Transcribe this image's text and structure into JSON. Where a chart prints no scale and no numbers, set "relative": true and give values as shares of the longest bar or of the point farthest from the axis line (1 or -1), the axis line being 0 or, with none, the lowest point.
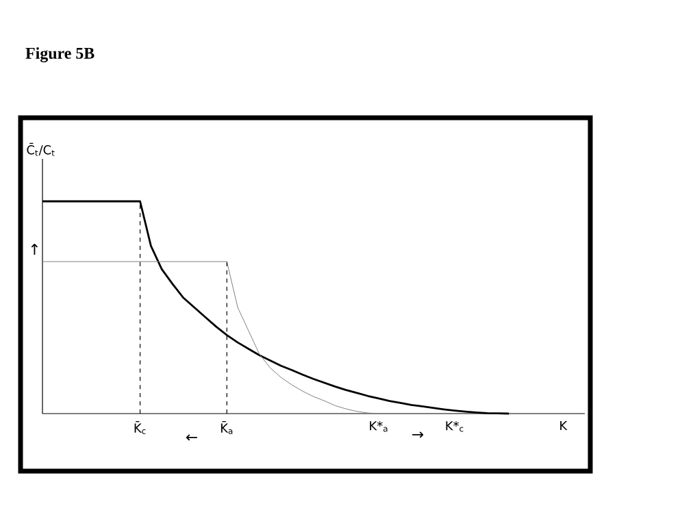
{
  "chart_data": {
    "type": "line",
    "title": "Figure 5B",
    "ylabel": "C̄$_{t}$/C$_{t}$",
    "relative": true,
    "categories": [
      null,
      null,
      null,
      null,
      null,
      null,
      null,
      null,
      null,
      "K̄$_{c}$",
      null,
      null,
      null,
      null,
      null,
      null,
      null,
      "K̄$_{a}$",
      null,
      null,
      null,
      null,
      null,
      null,
      null,
      null,
      null,
      null,
      null,
      null,
      null,
      "K*$_{a}$",
      null,
      null,
      null,
      null,
      null,
      null,
      "K*$_{c}$",
      null,
      null,
      null,
      null,
      null,
      null,
      null,
      null,
      null,
      "K",
      null,
      null
    ],
    "series": [
      {
        "color": "#000000",
        "values": [
          1,
          1,
          1,
          1,
          1,
          1,
          1,
          1,
          1,
          1,
          0.79,
          0.68,
          0.61,
          0.545,
          0.5,
          0.455,
          0.41,
          0.37,
          0.335,
          0.305,
          0.275,
          0.25,
          0.225,
          0.205,
          0.183,
          0.163,
          0.145,
          0.127,
          0.111,
          0.097,
          0.083,
          0.071,
          0.059,
          0.05,
          0.041,
          0.034,
          0.027,
          0.02,
          0.014,
          0.009,
          0.005,
          0.002,
          0.001,
          0,
          null,
          null,
          null,
          null,
          null,
          null,
          null
        ]
      },
      {
        "color": "#808080",
        "values": [
          0.716,
          0.716,
          0.716,
          0.716,
          0.716,
          0.716,
          0.716,
          0.716,
          0.716,
          0.716,
          0.716,
          0.716,
          0.716,
          0.716,
          0.716,
          0.716,
          0.716,
          0.716,
          0.5,
          0.39,
          0.28,
          0.215,
          0.17,
          0.135,
          0.105,
          0.08,
          0.06,
          0.037,
          0.022,
          0.01,
          0.003,
          0,
          0,
          null,
          null,
          null,
          null,
          null,
          null,
          null,
          null,
          null,
          null,
          null,
          null,
          null,
          null,
          null,
          null,
          null,
          null
        ]
      }
    ],
    "ref_lines": [
      {
        "axis": "x",
        "value": "K̄$_{c}$",
        "line_style": "dashed"
      },
      {
        "axis": "x",
        "value": "K̄$_{a}$",
        "line_style": "dashed"
      }
    ],
    "annotations": [
      "↑",
      "←",
      "→"
    ]
  }
}
